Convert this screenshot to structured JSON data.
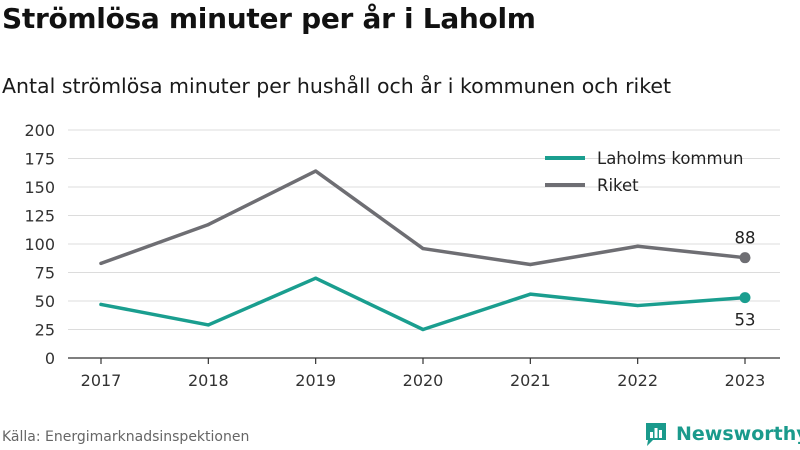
{
  "header": {
    "title": "Strömlösa minuter per år i Laholm",
    "subtitle": "Antal strömlösa minuter per hushåll och år i kommunen och riket"
  },
  "footer": {
    "source": "Källa: Energimarknadsinspektionen",
    "brand": "Newsworthy",
    "brand_icon": "newsworthy-logo-icon"
  },
  "colors": {
    "laholm": "#1a9e8f",
    "riket": "#6e6e73",
    "grid": "#dcdcdc",
    "axis": "#333333",
    "brand": "#1a9a8c"
  },
  "chart_data": {
    "type": "line",
    "x": [
      "2017",
      "2018",
      "2019",
      "2020",
      "2021",
      "2022",
      "2023"
    ],
    "yticks": [
      "0",
      "25",
      "50",
      "75",
      "100",
      "125",
      "150",
      "175",
      "200"
    ],
    "ylim": [
      0,
      200
    ],
    "grid": true,
    "legend_position": "top-right",
    "series": [
      {
        "name": "Laholms kommun",
        "key": "laholm",
        "values": [
          47,
          29,
          70,
          25,
          56,
          46,
          53
        ],
        "end_label": "53"
      },
      {
        "name": "Riket",
        "key": "riket",
        "values": [
          83,
          117,
          164,
          96,
          82,
          98,
          88
        ],
        "end_label": "88"
      }
    ]
  }
}
